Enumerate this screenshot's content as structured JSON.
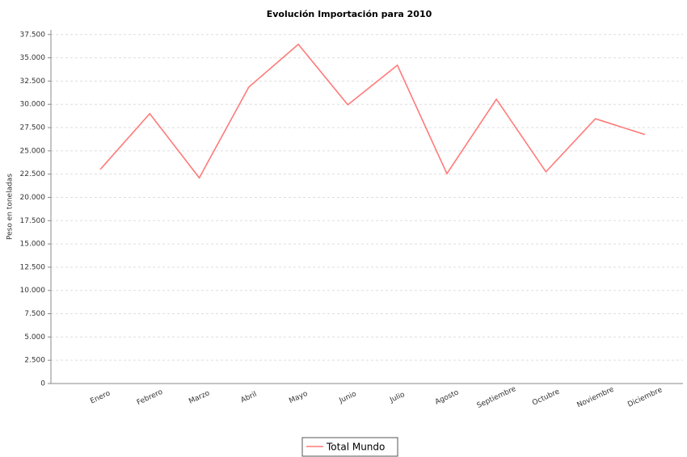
{
  "chart_data": {
    "type": "line",
    "title": "Evolución Importación para 2010",
    "y_label": "Peso en toneladas",
    "categories": [
      "Enero",
      "Febrero",
      "Marzo",
      "Abril",
      "Mayo",
      "Junio",
      "Julio",
      "Agosto",
      "Septiembre",
      "Octubre",
      "Noviembre",
      "Diciembre"
    ],
    "series": [
      {
        "name": "Total Mundo",
        "color": "#ff7a7a",
        "values": [
          23000,
          29000,
          22100,
          31850,
          36450,
          29950,
          34200,
          22550,
          30550,
          22750,
          28450,
          26750
        ]
      }
    ],
    "ylim": [
      0,
      38000
    ],
    "yticks": [
      0,
      {
        "value": 2500,
        "label": "2.500"
      },
      {
        "value": 5000,
        "label": "5.000"
      },
      {
        "value": 7500,
        "label": "7.500"
      },
      {
        "value": 10000,
        "label": "10.000"
      },
      {
        "value": 12500,
        "label": "12.500"
      },
      {
        "value": 15000,
        "label": "15.000"
      },
      {
        "value": 17500,
        "label": "17.500"
      },
      {
        "value": 20000,
        "label": "20.000"
      },
      {
        "value": 22500,
        "label": "22.500"
      },
      {
        "value": 25000,
        "label": "25.000"
      },
      {
        "value": 27500,
        "label": "27.500"
      },
      {
        "value": 30000,
        "label": "30.000"
      },
      {
        "value": 32500,
        "label": "32.500"
      },
      {
        "value": 35000,
        "label": "35.000"
      },
      {
        "value": 37500,
        "label": "37.500"
      }
    ],
    "grid": true,
    "legend": "bottom"
  }
}
